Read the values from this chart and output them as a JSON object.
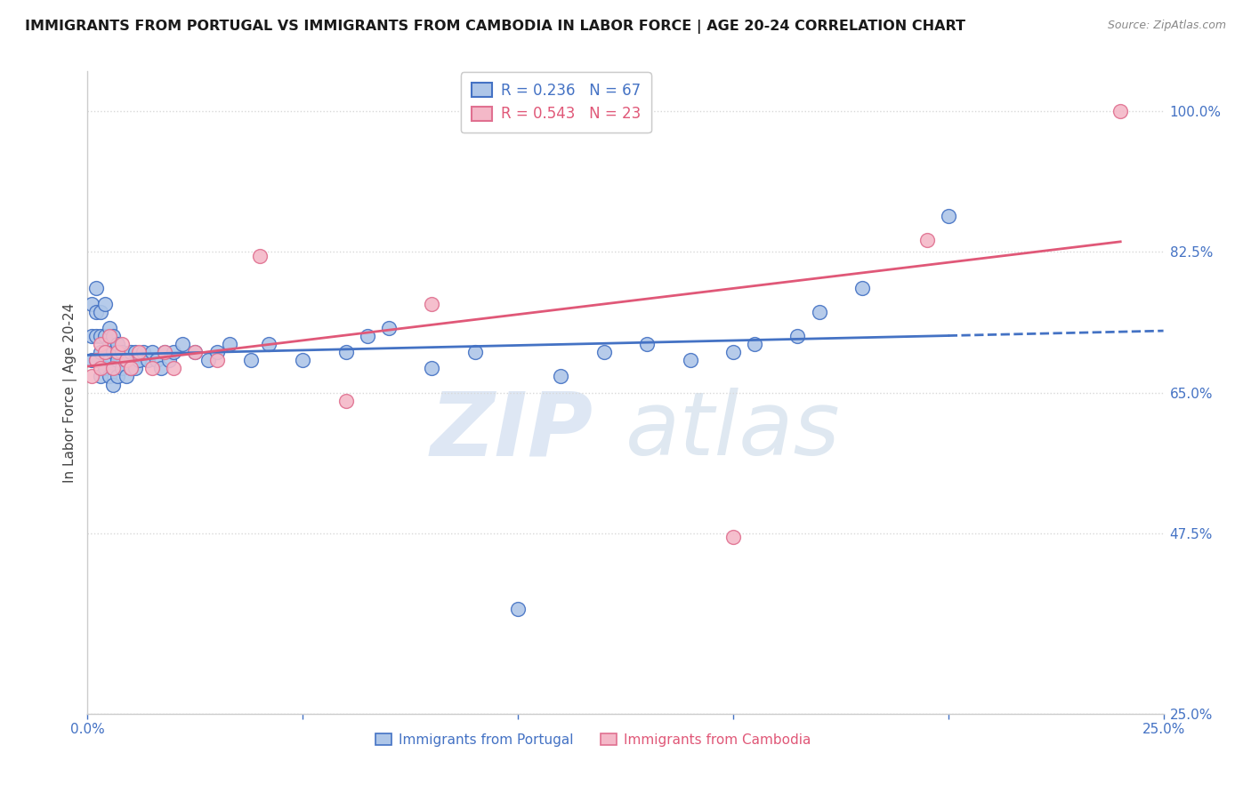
{
  "title": "IMMIGRANTS FROM PORTUGAL VS IMMIGRANTS FROM CAMBODIA IN LABOR FORCE | AGE 20-24 CORRELATION CHART",
  "source": "Source: ZipAtlas.com",
  "ylabel": "In Labor Force | Age 20-24",
  "xlim": [
    0.0,
    0.25
  ],
  "ylim": [
    0.25,
    1.05
  ],
  "xticks": [
    0.0,
    0.05,
    0.1,
    0.15,
    0.2,
    0.25
  ],
  "xticklabels": [
    "0.0%",
    "",
    "",
    "",
    "",
    "25.0%"
  ],
  "yticks_right": [
    0.25,
    0.475,
    0.65,
    0.825,
    1.0
  ],
  "yticklabels_right": [
    "25.0%",
    "47.5%",
    "65.0%",
    "82.5%",
    "100.0%"
  ],
  "portugal_color": "#aec6e8",
  "cambodia_color": "#f4b8c8",
  "portugal_edge_color": "#4472c4",
  "cambodia_edge_color": "#e07090",
  "portugal_line_color": "#4472c4",
  "cambodia_line_color": "#e05878",
  "legend_R_portugal": "R = 0.236",
  "legend_N_portugal": "N = 67",
  "legend_R_cambodia": "R = 0.543",
  "legend_N_cambodia": "N = 23",
  "portugal_x": [
    0.001,
    0.001,
    0.001,
    0.002,
    0.002,
    0.002,
    0.002,
    0.003,
    0.003,
    0.003,
    0.003,
    0.004,
    0.004,
    0.004,
    0.004,
    0.005,
    0.005,
    0.005,
    0.005,
    0.006,
    0.006,
    0.006,
    0.006,
    0.007,
    0.007,
    0.007,
    0.008,
    0.008,
    0.009,
    0.009,
    0.01,
    0.01,
    0.011,
    0.011,
    0.012,
    0.013,
    0.014,
    0.015,
    0.016,
    0.017,
    0.018,
    0.019,
    0.02,
    0.022,
    0.025,
    0.028,
    0.03,
    0.033,
    0.038,
    0.042,
    0.05,
    0.06,
    0.065,
    0.07,
    0.08,
    0.09,
    0.1,
    0.11,
    0.12,
    0.13,
    0.14,
    0.15,
    0.155,
    0.165,
    0.17,
    0.18,
    0.2
  ],
  "portugal_y": [
    0.69,
    0.72,
    0.76,
    0.69,
    0.72,
    0.75,
    0.78,
    0.67,
    0.7,
    0.72,
    0.75,
    0.68,
    0.7,
    0.72,
    0.76,
    0.67,
    0.69,
    0.71,
    0.73,
    0.66,
    0.68,
    0.7,
    0.72,
    0.67,
    0.69,
    0.71,
    0.68,
    0.7,
    0.67,
    0.69,
    0.68,
    0.7,
    0.68,
    0.7,
    0.69,
    0.7,
    0.69,
    0.7,
    0.69,
    0.68,
    0.7,
    0.69,
    0.7,
    0.71,
    0.7,
    0.69,
    0.7,
    0.71,
    0.69,
    0.71,
    0.69,
    0.7,
    0.72,
    0.73,
    0.68,
    0.7,
    0.38,
    0.67,
    0.7,
    0.71,
    0.69,
    0.7,
    0.71,
    0.72,
    0.75,
    0.78,
    0.87
  ],
  "cambodia_x": [
    0.001,
    0.002,
    0.003,
    0.003,
    0.004,
    0.005,
    0.006,
    0.007,
    0.008,
    0.009,
    0.01,
    0.012,
    0.015,
    0.018,
    0.02,
    0.025,
    0.03,
    0.04,
    0.06,
    0.08,
    0.15,
    0.195,
    0.24
  ],
  "cambodia_y": [
    0.67,
    0.69,
    0.68,
    0.71,
    0.7,
    0.72,
    0.68,
    0.7,
    0.71,
    0.69,
    0.68,
    0.7,
    0.68,
    0.7,
    0.68,
    0.7,
    0.69,
    0.82,
    0.64,
    0.76,
    0.47,
    0.84,
    1.0
  ],
  "background_color": "#ffffff",
  "grid_color": "#d8d8d8",
  "watermark_zip": "ZIP",
  "watermark_atlas": "atlas",
  "title_fontsize": 11.5,
  "axis_label_fontsize": 11
}
